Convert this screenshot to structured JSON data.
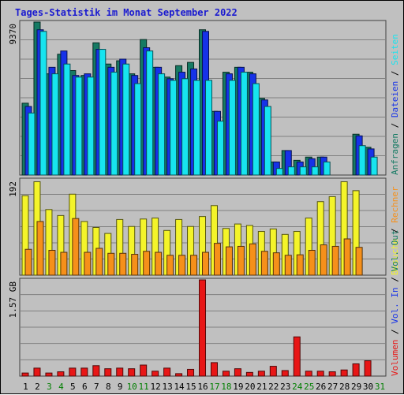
{
  "colors": {
    "background": "#c0c0c0",
    "grid": "#808080",
    "hits": "#157a63",
    "files": "#1632e8",
    "pages": "#17e4ef",
    "visits": "#f4f42a",
    "sites": "#f6901a",
    "kbytes": "#e81616",
    "title": "#1a1ad0",
    "weekend_label": "#007f00"
  },
  "chart_data": {
    "type": "bar",
    "title": "Tages-Statistik im Monat September 2022",
    "categories": [
      "1",
      "2",
      "3",
      "4",
      "5",
      "6",
      "7",
      "8",
      "9",
      "10",
      "11",
      "12",
      "13",
      "14",
      "15",
      "16",
      "17",
      "18",
      "19",
      "20",
      "21",
      "22",
      "23",
      "24",
      "25",
      "26",
      "27",
      "28",
      "29",
      "30",
      "31"
    ],
    "weekend_days": [
      "3",
      "4",
      "10",
      "11",
      "17",
      "18",
      "24",
      "25",
      "31"
    ],
    "panels": [
      {
        "name": "hits",
        "ylabel": "9370",
        "ymax": 9370,
        "series_labels": [
          {
            "text": "Anfragen",
            "color": "#157a63"
          },
          {
            "text": "Dateien",
            "color": "#1632e8"
          },
          {
            "text": "Seiten",
            "color": "#17e4ef"
          }
        ],
        "series": [
          {
            "name": "Anfragen",
            "values": [
              4400,
              9370,
              6200,
              7400,
              6400,
              6100,
              8100,
              6800,
              7000,
              6200,
              8300,
              6600,
              6000,
              6700,
              6900,
              8900,
              3900,
              6300,
              6600,
              6300,
              4700,
              800,
              1500,
              900,
              1100,
              1100,
              0,
              0,
              2500,
              1700,
              0
            ]
          },
          {
            "name": "Dateien",
            "values": [
              4200,
              8900,
              6600,
              7600,
              6100,
              6200,
              7700,
              6600,
              7100,
              6100,
              7800,
              6600,
              5900,
              6300,
              6500,
              8800,
              3900,
              6200,
              6600,
              6200,
              4600,
              800,
              1500,
              800,
              1000,
              1100,
              0,
              0,
              2400,
              1600,
              0
            ]
          },
          {
            "name": "Seiten",
            "values": [
              3800,
              8800,
              6200,
              6800,
              6000,
              6000,
              7700,
              6300,
              6800,
              5600,
              7600,
              6200,
              5800,
              5900,
              5800,
              5800,
              3300,
              5800,
              6300,
              5600,
              4200,
              400,
              500,
              500,
              500,
              800,
              0,
              0,
              1800,
              1100,
              0
            ]
          }
        ]
      },
      {
        "name": "visits",
        "ylabel": "192",
        "ymax": 192,
        "series_labels": [
          {
            "text": "Besuche",
            "color": "#f4f42a"
          },
          {
            "text": "Rechner",
            "color": "#f6901a"
          }
        ],
        "series": [
          {
            "name": "Besuche",
            "values": [
              160,
              188,
              132,
              120,
              163,
              108,
              96,
              84,
              112,
              98,
              113,
              115,
              90,
              112,
              98,
              118,
              140,
              94,
              103,
              100,
              88,
              93,
              82,
              88,
              115,
              148,
              158,
              188,
              170,
              0,
              0
            ]
          },
          {
            "name": "Rechner",
            "values": [
              52,
              108,
              50,
              46,
              114,
              46,
              54,
              44,
              44,
              42,
              48,
              46,
              40,
              40,
              40,
              46,
              64,
              57,
              58,
              63,
              48,
              45,
              40,
              41,
              50,
              61,
              58,
              73,
              56,
              0,
              0
            ]
          }
        ]
      },
      {
        "name": "volume",
        "ylabel": "1.57 GB",
        "ymax": 1.57,
        "series_labels": [
          {
            "text": "Volumen",
            "color": "#e81616"
          },
          {
            "text": "Vol. In",
            "color": "#1632e8"
          },
          {
            "text": "Vol. Out",
            "color": "#157a63"
          }
        ],
        "series": [
          {
            "name": "Volumen",
            "values": [
              0.05,
              0.13,
              0.05,
              0.07,
              0.13,
              0.13,
              0.17,
              0.12,
              0.13,
              0.12,
              0.18,
              0.08,
              0.13,
              0.04,
              0.11,
              1.57,
              0.22,
              0.08,
              0.12,
              0.06,
              0.08,
              0.16,
              0.09,
              0.64,
              0.08,
              0.08,
              0.07,
              0.1,
              0.2,
              0.25,
              0
            ]
          }
        ]
      }
    ]
  }
}
